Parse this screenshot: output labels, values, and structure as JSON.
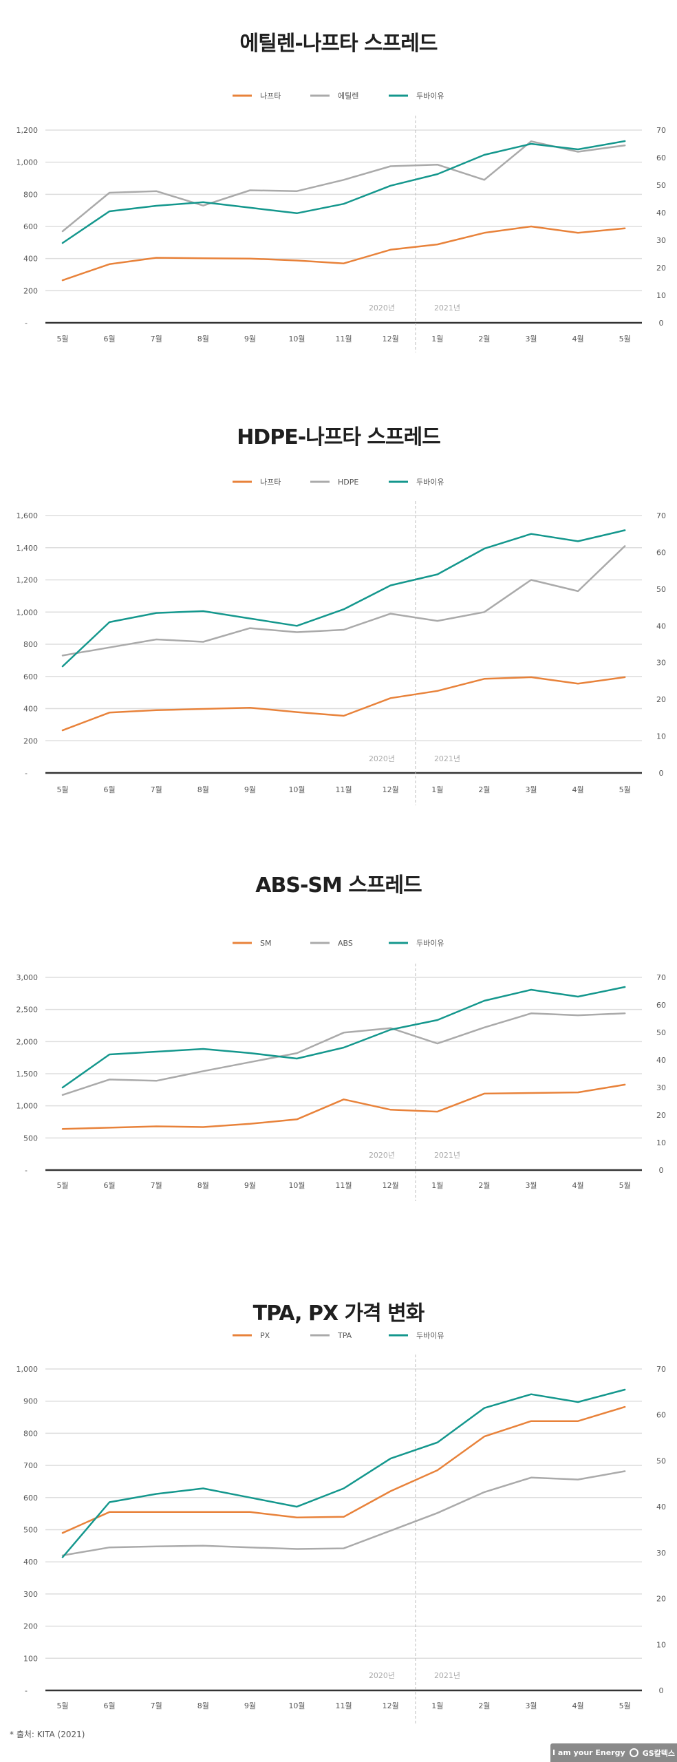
{
  "colors": {
    "orange": "#E8823A",
    "gray": "#AAAAAA",
    "teal": "#14978D",
    "baseline": "#333333",
    "grid": "#DDDDDD",
    "divider": "#BBBBBB"
  },
  "footer": {
    "source": "* 출처: KITA (2021)",
    "logo_text": "I am your Energy",
    "logo_brand": "GS칼텍스"
  },
  "chart_data": [
    {
      "type": "line",
      "title": "에틸렌-나프타 스프레드",
      "categories": [
        "5월",
        "6월",
        "7월",
        "8월",
        "9월",
        "10월",
        "11월",
        "12월",
        "1월",
        "2월",
        "3월",
        "4월",
        "5월"
      ],
      "year_labels": [
        "2020년",
        "2021년"
      ],
      "left_axis": {
        "ylim": [
          0,
          1200
        ],
        "ticks": [
          "-",
          "200",
          "400",
          "600",
          "800",
          "1,000",
          "1,200"
        ]
      },
      "right_axis": {
        "ylim": [
          0,
          70
        ],
        "ticks": [
          "0",
          "10",
          "20",
          "30",
          "40",
          "50",
          "60",
          "70"
        ]
      },
      "grid": true,
      "legend": "top-center",
      "series": [
        {
          "name": "나프타",
          "axis": "left",
          "color": "#E8823A",
          "values": [
            265,
            365,
            405,
            402,
            400,
            388,
            370,
            455,
            488,
            560,
            600,
            560,
            588
          ]
        },
        {
          "name": "에틸렌",
          "axis": "left",
          "color": "#AAAAAA",
          "values": [
            570,
            810,
            820,
            730,
            825,
            820,
            890,
            975,
            985,
            890,
            1130,
            1065,
            1105
          ]
        },
        {
          "name": "두바이유",
          "axis": "right",
          "color": "#14978D",
          "values": [
            29,
            40.5,
            42.5,
            43.8,
            41.8,
            39.8,
            43.2,
            49.8,
            54,
            61,
            65,
            63,
            66
          ]
        }
      ]
    },
    {
      "type": "line",
      "title": "HDPE-나프타 스프레드",
      "categories": [
        "5월",
        "6월",
        "7월",
        "8월",
        "9월",
        "10월",
        "11월",
        "12월",
        "1월",
        "2월",
        "3월",
        "4월",
        "5월"
      ],
      "year_labels": [
        "2020년",
        "2021년"
      ],
      "left_axis": {
        "ylim": [
          0,
          1600
        ],
        "ticks": [
          "-",
          "200",
          "400",
          "600",
          "800",
          "1,000",
          "1,200",
          "1,400",
          "1,600"
        ]
      },
      "right_axis": {
        "ylim": [
          0,
          70
        ],
        "ticks": [
          "0",
          "10",
          "20",
          "30",
          "40",
          "50",
          "60",
          "70"
        ]
      },
      "grid": true,
      "legend": "top-center",
      "series": [
        {
          "name": "나프타",
          "axis": "left",
          "color": "#E8823A",
          "values": [
            265,
            375,
            390,
            398,
            405,
            378,
            355,
            465,
            510,
            585,
            595,
            555,
            595
          ]
        },
        {
          "name": "HDPE",
          "axis": "left",
          "color": "#AAAAAA",
          "values": [
            730,
            780,
            830,
            815,
            900,
            875,
            890,
            990,
            945,
            1000,
            1200,
            1130,
            1410
          ]
        },
        {
          "name": "두바이유",
          "axis": "right",
          "color": "#14978D",
          "values": [
            29,
            41,
            43.5,
            44,
            42,
            40,
            44.5,
            51,
            54,
            61,
            65,
            63,
            66
          ]
        }
      ]
    },
    {
      "type": "line",
      "title": "ABS-SM 스프레드",
      "categories": [
        "5월",
        "6월",
        "7월",
        "8월",
        "9월",
        "10월",
        "11월",
        "12월",
        "1월",
        "2월",
        "3월",
        "4월",
        "5월"
      ],
      "year_labels": [
        "2020년",
        "2021년"
      ],
      "left_axis": {
        "ylim": [
          0,
          3000
        ],
        "ticks": [
          "-",
          "500",
          "1,000",
          "1,500",
          "2,000",
          "2,500",
          "3,000"
        ]
      },
      "right_axis": {
        "ylim": [
          0,
          70
        ],
        "ticks": [
          "0",
          "10",
          "20",
          "30",
          "40",
          "50",
          "60",
          "70"
        ]
      },
      "grid": true,
      "legend": "top-center",
      "series": [
        {
          "name": "SM",
          "axis": "left",
          "color": "#E8823A",
          "values": [
            640,
            660,
            680,
            670,
            720,
            790,
            1100,
            940,
            910,
            1190,
            1200,
            1210,
            1330
          ]
        },
        {
          "name": "ABS",
          "axis": "left",
          "color": "#AAAAAA",
          "values": [
            1170,
            1410,
            1390,
            1540,
            1680,
            1820,
            2140,
            2210,
            1970,
            2220,
            2440,
            2410,
            2440
          ]
        },
        {
          "name": "두바이유",
          "axis": "right",
          "color": "#14978D",
          "values": [
            30,
            42,
            43,
            44,
            42.5,
            40.5,
            44.5,
            51,
            54.5,
            61.5,
            65.5,
            63,
            66.5
          ]
        }
      ]
    },
    {
      "type": "line",
      "title": "TPA, PX 가격 변화",
      "categories": [
        "5월",
        "6월",
        "7월",
        "8월",
        "9월",
        "10월",
        "11월",
        "12월",
        "1월",
        "2월",
        "3월",
        "4월",
        "5월"
      ],
      "year_labels": [
        "2020년",
        "2021년"
      ],
      "left_axis": {
        "ylim": [
          0,
          1000
        ],
        "ticks": [
          "-",
          "100",
          "200",
          "300",
          "400",
          "500",
          "600",
          "700",
          "800",
          "900",
          "1,000"
        ]
      },
      "right_axis": {
        "ylim": [
          0,
          70
        ],
        "ticks": [
          "0",
          "10",
          "20",
          "30",
          "40",
          "50",
          "60",
          "70"
        ]
      },
      "grid": true,
      "legend": "top-center",
      "series": [
        {
          "name": "PX",
          "axis": "left",
          "color": "#E8823A",
          "values": [
            490,
            555,
            555,
            555,
            555,
            538,
            540,
            620,
            685,
            790,
            838,
            838,
            882
          ]
        },
        {
          "name": "TPA",
          "axis": "left",
          "color": "#AAAAAA",
          "values": [
            420,
            445,
            448,
            450,
            445,
            440,
            442,
            497,
            552,
            617,
            662,
            656,
            682
          ]
        },
        {
          "name": "두바이유",
          "axis": "right",
          "color": "#14978D",
          "values": [
            29,
            41,
            42.8,
            44,
            42,
            40,
            44,
            50.5,
            54,
            61.5,
            64.5,
            62.8,
            65.5
          ]
        }
      ]
    }
  ]
}
